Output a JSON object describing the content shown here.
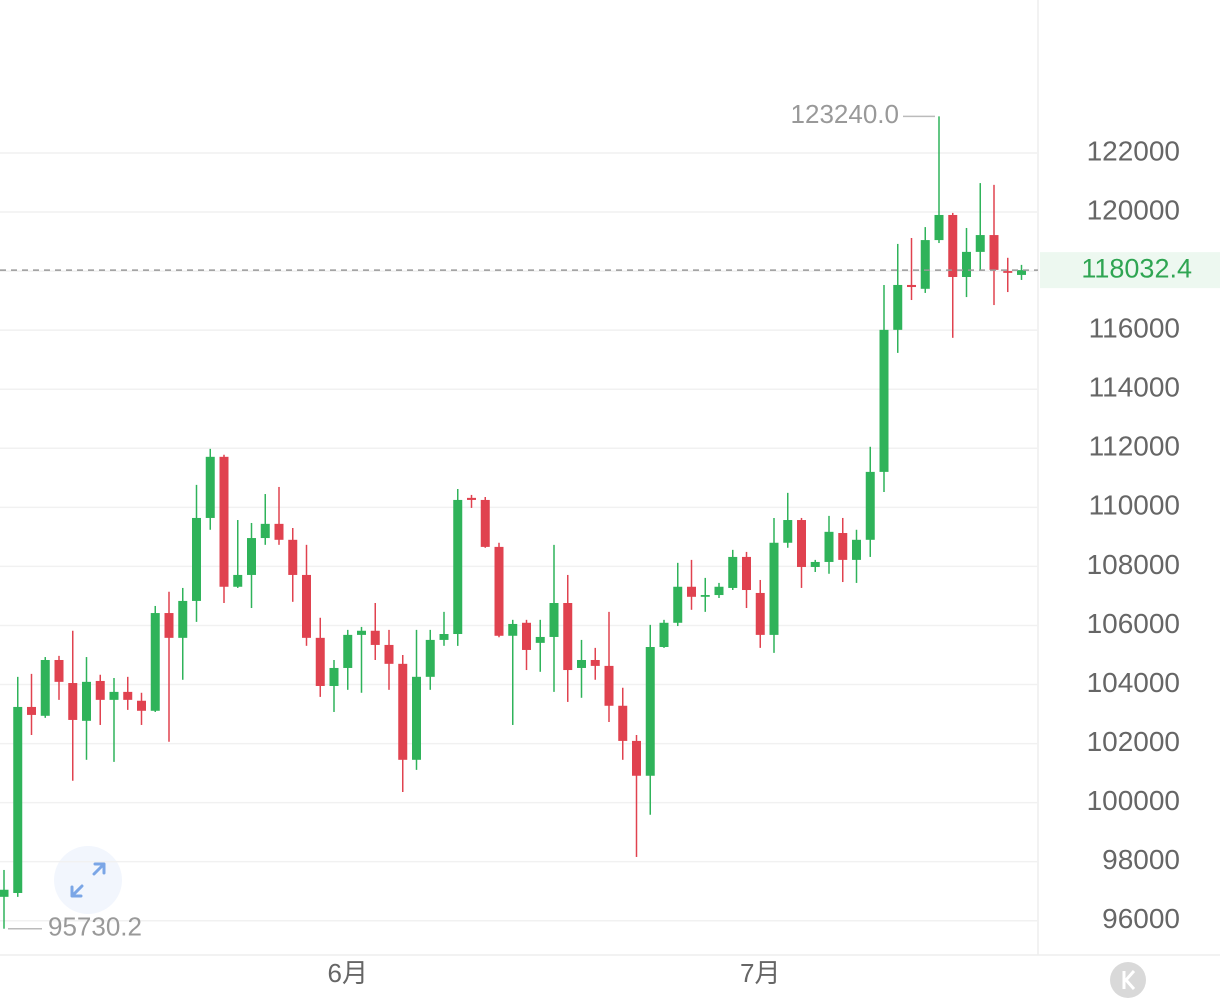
{
  "chart_data": {
    "type": "candlestick",
    "categories": [
      null,
      null,
      null,
      null,
      null,
      null,
      null,
      null,
      null,
      null,
      null,
      null,
      null,
      null,
      null,
      null,
      null,
      null,
      null,
      null,
      null,
      null,
      null,
      null,
      null,
      null,
      null,
      null,
      null,
      null,
      null,
      null,
      null,
      null,
      null,
      null,
      null,
      null,
      null,
      null,
      null,
      null,
      null,
      null,
      null,
      null,
      null,
      null,
      null,
      null,
      null,
      null,
      null,
      null,
      null,
      null,
      null,
      null,
      null,
      null,
      null,
      null,
      null,
      null,
      null,
      null,
      null,
      null,
      null,
      null,
      null,
      null,
      null,
      null,
      null
    ],
    "open": [
      96810,
      96940,
      103240,
      102940,
      104830,
      104050,
      102770,
      104120,
      103480,
      103750,
      103450,
      103110,
      106420,
      105580,
      106830,
      109640,
      111710,
      107310,
      107710,
      108960,
      109440,
      108900,
      107710,
      105580,
      103950,
      104560,
      105680,
      105820,
      105340,
      104700,
      101450,
      104260,
      105510,
      105710,
      110320,
      110250,
      108660,
      105650,
      106090,
      105410,
      105610,
      106760,
      104560,
      104830,
      104630,
      103280,
      102090,
      100910,
      105270,
      106090,
      107310,
      106970,
      107030,
      107270,
      108320,
      107100,
      105680,
      108800,
      109570,
      107980,
      108150,
      109130,
      108220,
      108900,
      111200,
      116010,
      117530,
      117400,
      119050,
      119900,
      117800,
      118650,
      119220,
      118000,
      117870
    ],
    "high": [
      97720,
      104260,
      104360,
      104930,
      104970,
      105820,
      104930,
      104330,
      104220,
      104260,
      103720,
      106660,
      107140,
      107270,
      110760,
      111980,
      111780,
      109570,
      109470,
      110450,
      110690,
      109300,
      108730,
      106260,
      104830,
      105850,
      105950,
      106760,
      105850,
      105000,
      105850,
      105850,
      106460,
      110620,
      110420,
      110350,
      108800,
      106190,
      106190,
      106190,
      108730,
      107710,
      105510,
      105240,
      106460,
      103890,
      102290,
      106020,
      106190,
      108120,
      108220,
      107610,
      107440,
      108560,
      108490,
      107540,
      109640,
      110490,
      109640,
      108220,
      109710,
      109640,
      109240,
      112050,
      117530,
      118920,
      119120,
      119490,
      123240,
      119970,
      119460,
      120980,
      120920,
      118450,
      118210
    ],
    "low": [
      95730.2,
      96810,
      102290,
      102870,
      103480,
      100740,
      101450,
      102630,
      101380,
      103140,
      102630,
      103070,
      102060,
      104160,
      106120,
      109240,
      106760,
      107270,
      106590,
      108730,
      108730,
      106800,
      105310,
      103580,
      103070,
      103820,
      103720,
      104830,
      103820,
      100360,
      101110,
      103820,
      105310,
      105310,
      109980,
      108630,
      105600,
      102630,
      104490,
      104430,
      103750,
      103410,
      103550,
      104160,
      102730,
      101450,
      98160,
      99590,
      105240,
      105980,
      106530,
      106460,
      106930,
      107200,
      106590,
      105240,
      105070,
      108630,
      107270,
      107810,
      107750,
      107470,
      107440,
      108320,
      110520,
      115230,
      117020,
      117260,
      118950,
      115740,
      117120,
      118040,
      116850,
      117290,
      117700
    ],
    "close": [
      97050,
      103240,
      102970,
      104830,
      104090,
      102800,
      104090,
      103480,
      103750,
      103480,
      103110,
      106420,
      105580,
      106830,
      109640,
      111710,
      107310,
      107710,
      108960,
      109440,
      108900,
      107710,
      105580,
      103950,
      104560,
      105680,
      105820,
      105340,
      104700,
      101450,
      104260,
      105510,
      105710,
      110250,
      110250,
      108660,
      105650,
      106050,
      105170,
      105610,
      106760,
      104490,
      104830,
      104630,
      103280,
      102090,
      100910,
      105270,
      106090,
      107310,
      106970,
      107030,
      107310,
      108320,
      107200,
      105680,
      108800,
      109570,
      107980,
      108150,
      109170,
      108220,
      108900,
      111200,
      116010,
      117530,
      117460,
      119050,
      119900,
      117800,
      118650,
      119220,
      118040,
      117940,
      118032.4
    ],
    "up_color": "#2fb35a",
    "down_color": "#e0424f",
    "ylim": [
      94840,
      127180
    ],
    "yticks": [
      96000,
      98000,
      100000,
      102000,
      104000,
      106000,
      108000,
      110000,
      112000,
      114000,
      116000,
      118000,
      120000,
      122000
    ],
    "xticks": [
      {
        "value": 25,
        "label": "6月"
      },
      {
        "value": 55,
        "label": "7月"
      }
    ],
    "grid": true,
    "annotations": [
      {
        "value": 123240,
        "label": "123240.0"
      },
      {
        "value": 95730.2,
        "label": "95730.2"
      }
    ],
    "last_price": {
      "value": 118032.4,
      "label": "118032.4"
    }
  }
}
